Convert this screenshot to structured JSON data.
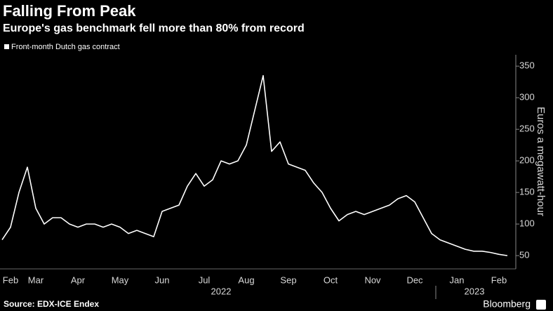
{
  "chart_data": {
    "type": "line",
    "title": "Falling From Peak",
    "subtitle": "Europe's gas benchmark fell more than 80% from record",
    "y_axis_label": "Euros a megawatt-hour",
    "source": "Source: EDX-ICE Endex",
    "brand": "Bloomberg",
    "year_labels": [
      "2022",
      "2023"
    ],
    "categories": [
      null,
      "Feb",
      null,
      null,
      "Mar",
      null,
      null,
      null,
      null,
      "Apr",
      null,
      null,
      null,
      null,
      "May",
      null,
      null,
      null,
      null,
      "Jun",
      null,
      null,
      null,
      null,
      "Jul",
      null,
      null,
      null,
      null,
      "Aug",
      null,
      null,
      null,
      null,
      "Sep",
      null,
      null,
      null,
      null,
      "Oct",
      null,
      null,
      null,
      null,
      "Nov",
      null,
      null,
      null,
      null,
      "Dec",
      null,
      null,
      null,
      null,
      "Jan",
      null,
      null,
      null,
      null,
      "Feb",
      null
    ],
    "series": [
      {
        "name": "Front-month Dutch gas contract",
        "color": "#ffffff",
        "values": [
          75,
          95,
          150,
          190,
          125,
          100,
          110,
          110,
          100,
          95,
          100,
          100,
          95,
          100,
          95,
          85,
          90,
          85,
          80,
          120,
          125,
          130,
          160,
          180,
          160,
          170,
          200,
          195,
          200,
          225,
          280,
          335,
          215,
          230,
          195,
          190,
          185,
          165,
          150,
          125,
          105,
          115,
          120,
          115,
          120,
          125,
          130,
          140,
          145,
          135,
          110,
          85,
          75,
          70,
          65,
          60,
          57,
          57,
          55,
          52,
          50
        ]
      }
    ],
    "ylim": [
      29,
      368
    ],
    "yticks": [
      50,
      100,
      150,
      200,
      250,
      300,
      350
    ],
    "grid": false,
    "legend": "top-left"
  }
}
